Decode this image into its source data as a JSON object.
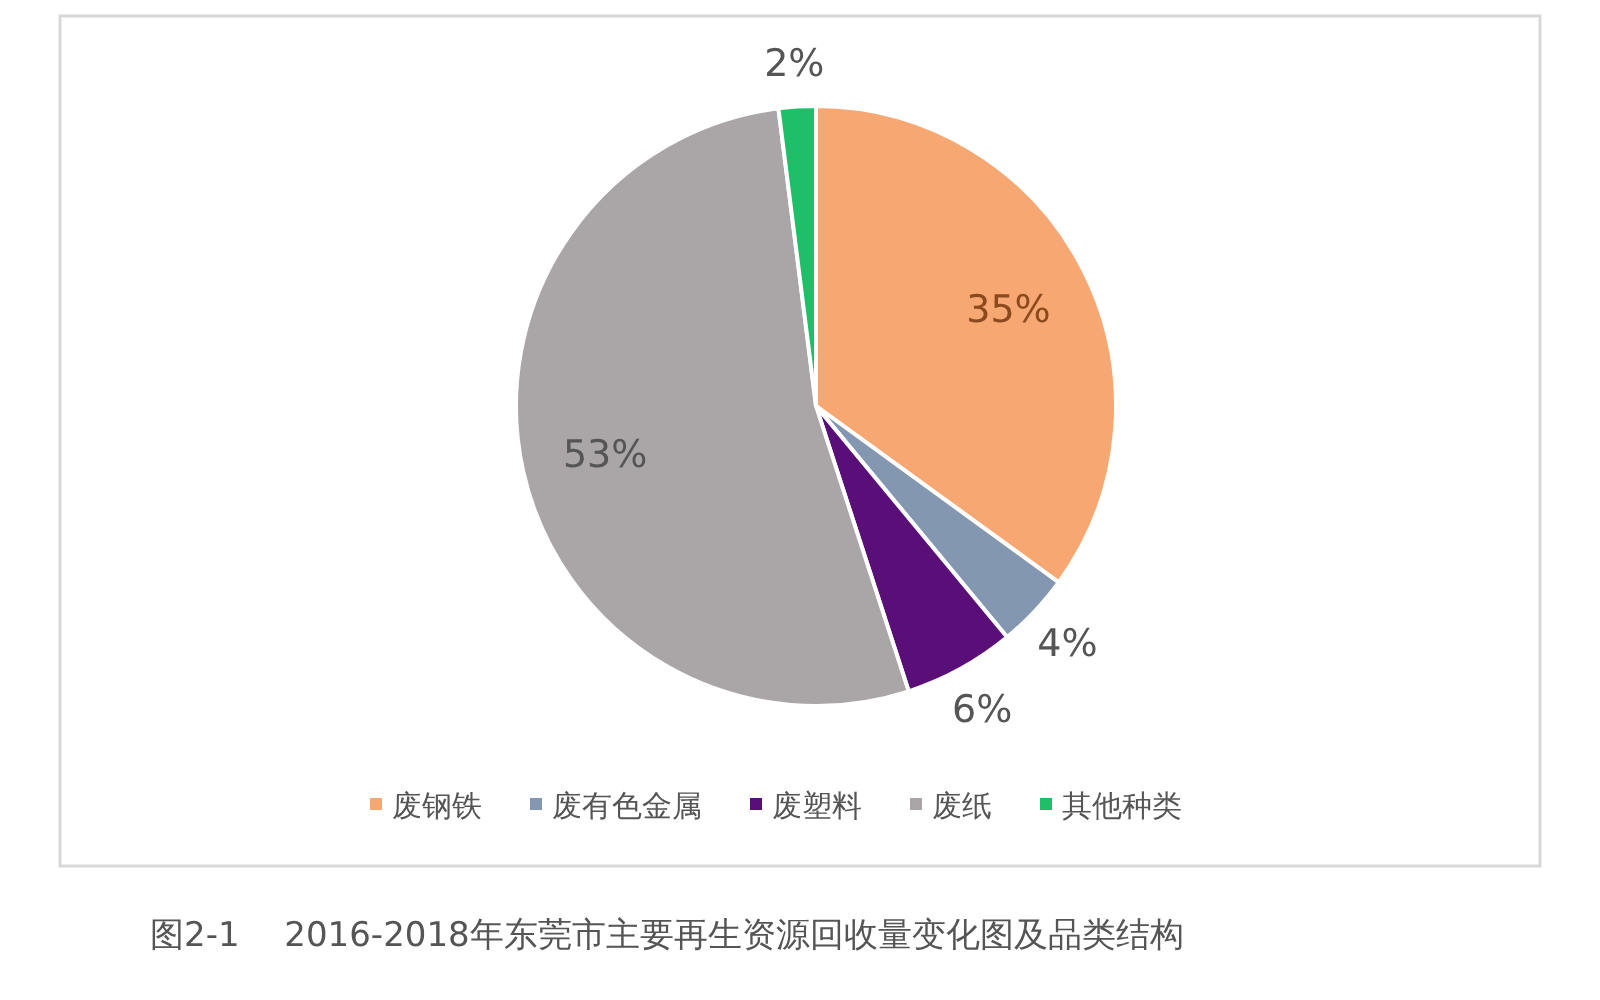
{
  "chart_data": {
    "type": "pie",
    "categories": [
      "废钢铁",
      "废有色金属",
      "废塑料",
      "废纸",
      "其他种类"
    ],
    "values": [
      35,
      4,
      6,
      53,
      2
    ],
    "colors": [
      "#f7a872",
      "#8397b0",
      "#5a0f78",
      "#aaa5a6",
      "#1fbf6a"
    ],
    "value_labels": [
      "35%",
      "4%",
      "6%",
      "53%",
      "2%"
    ],
    "legend": "bottom",
    "annotations": [
      "图2-1　 2016-2018年东莞市主要再生资源回收量变化图及品类结构"
    ]
  }
}
